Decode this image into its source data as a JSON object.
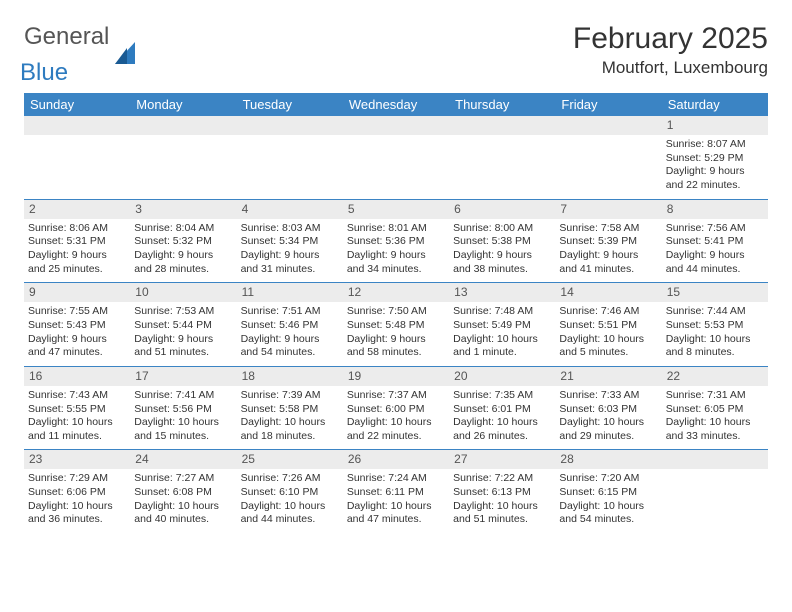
{
  "brand": {
    "word1": "General",
    "word2": "Blue"
  },
  "title": "February 2025",
  "location": "Moutfort, Luxembourg",
  "colors": {
    "header_bg": "#3b84c4",
    "header_text": "#ffffff",
    "grid_line": "#3b84c4",
    "daynum_bg": "#ececec",
    "body_text": "#333333",
    "brand_gray": "#555555",
    "brand_blue": "#2e7bbf"
  },
  "day_names": [
    "Sunday",
    "Monday",
    "Tuesday",
    "Wednesday",
    "Thursday",
    "Friday",
    "Saturday"
  ],
  "weeks": [
    [
      null,
      null,
      null,
      null,
      null,
      null,
      {
        "n": "1",
        "sunrise": "8:07 AM",
        "sunset": "5:29 PM",
        "dl1": "Daylight: 9 hours",
        "dl2": "and 22 minutes."
      }
    ],
    [
      {
        "n": "2",
        "sunrise": "8:06 AM",
        "sunset": "5:31 PM",
        "dl1": "Daylight: 9 hours",
        "dl2": "and 25 minutes."
      },
      {
        "n": "3",
        "sunrise": "8:04 AM",
        "sunset": "5:32 PM",
        "dl1": "Daylight: 9 hours",
        "dl2": "and 28 minutes."
      },
      {
        "n": "4",
        "sunrise": "8:03 AM",
        "sunset": "5:34 PM",
        "dl1": "Daylight: 9 hours",
        "dl2": "and 31 minutes."
      },
      {
        "n": "5",
        "sunrise": "8:01 AM",
        "sunset": "5:36 PM",
        "dl1": "Daylight: 9 hours",
        "dl2": "and 34 minutes."
      },
      {
        "n": "6",
        "sunrise": "8:00 AM",
        "sunset": "5:38 PM",
        "dl1": "Daylight: 9 hours",
        "dl2": "and 38 minutes."
      },
      {
        "n": "7",
        "sunrise": "7:58 AM",
        "sunset": "5:39 PM",
        "dl1": "Daylight: 9 hours",
        "dl2": "and 41 minutes."
      },
      {
        "n": "8",
        "sunrise": "7:56 AM",
        "sunset": "5:41 PM",
        "dl1": "Daylight: 9 hours",
        "dl2": "and 44 minutes."
      }
    ],
    [
      {
        "n": "9",
        "sunrise": "7:55 AM",
        "sunset": "5:43 PM",
        "dl1": "Daylight: 9 hours",
        "dl2": "and 47 minutes."
      },
      {
        "n": "10",
        "sunrise": "7:53 AM",
        "sunset": "5:44 PM",
        "dl1": "Daylight: 9 hours",
        "dl2": "and 51 minutes."
      },
      {
        "n": "11",
        "sunrise": "7:51 AM",
        "sunset": "5:46 PM",
        "dl1": "Daylight: 9 hours",
        "dl2": "and 54 minutes."
      },
      {
        "n": "12",
        "sunrise": "7:50 AM",
        "sunset": "5:48 PM",
        "dl1": "Daylight: 9 hours",
        "dl2": "and 58 minutes."
      },
      {
        "n": "13",
        "sunrise": "7:48 AM",
        "sunset": "5:49 PM",
        "dl1": "Daylight: 10 hours",
        "dl2": "and 1 minute."
      },
      {
        "n": "14",
        "sunrise": "7:46 AM",
        "sunset": "5:51 PM",
        "dl1": "Daylight: 10 hours",
        "dl2": "and 5 minutes."
      },
      {
        "n": "15",
        "sunrise": "7:44 AM",
        "sunset": "5:53 PM",
        "dl1": "Daylight: 10 hours",
        "dl2": "and 8 minutes."
      }
    ],
    [
      {
        "n": "16",
        "sunrise": "7:43 AM",
        "sunset": "5:55 PM",
        "dl1": "Daylight: 10 hours",
        "dl2": "and 11 minutes."
      },
      {
        "n": "17",
        "sunrise": "7:41 AM",
        "sunset": "5:56 PM",
        "dl1": "Daylight: 10 hours",
        "dl2": "and 15 minutes."
      },
      {
        "n": "18",
        "sunrise": "7:39 AM",
        "sunset": "5:58 PM",
        "dl1": "Daylight: 10 hours",
        "dl2": "and 18 minutes."
      },
      {
        "n": "19",
        "sunrise": "7:37 AM",
        "sunset": "6:00 PM",
        "dl1": "Daylight: 10 hours",
        "dl2": "and 22 minutes."
      },
      {
        "n": "20",
        "sunrise": "7:35 AM",
        "sunset": "6:01 PM",
        "dl1": "Daylight: 10 hours",
        "dl2": "and 26 minutes."
      },
      {
        "n": "21",
        "sunrise": "7:33 AM",
        "sunset": "6:03 PM",
        "dl1": "Daylight: 10 hours",
        "dl2": "and 29 minutes."
      },
      {
        "n": "22",
        "sunrise": "7:31 AM",
        "sunset": "6:05 PM",
        "dl1": "Daylight: 10 hours",
        "dl2": "and 33 minutes."
      }
    ],
    [
      {
        "n": "23",
        "sunrise": "7:29 AM",
        "sunset": "6:06 PM",
        "dl1": "Daylight: 10 hours",
        "dl2": "and 36 minutes."
      },
      {
        "n": "24",
        "sunrise": "7:27 AM",
        "sunset": "6:08 PM",
        "dl1": "Daylight: 10 hours",
        "dl2": "and 40 minutes."
      },
      {
        "n": "25",
        "sunrise": "7:26 AM",
        "sunset": "6:10 PM",
        "dl1": "Daylight: 10 hours",
        "dl2": "and 44 minutes."
      },
      {
        "n": "26",
        "sunrise": "7:24 AM",
        "sunset": "6:11 PM",
        "dl1": "Daylight: 10 hours",
        "dl2": "and 47 minutes."
      },
      {
        "n": "27",
        "sunrise": "7:22 AM",
        "sunset": "6:13 PM",
        "dl1": "Daylight: 10 hours",
        "dl2": "and 51 minutes."
      },
      {
        "n": "28",
        "sunrise": "7:20 AM",
        "sunset": "6:15 PM",
        "dl1": "Daylight: 10 hours",
        "dl2": "and 54 minutes."
      },
      null
    ]
  ],
  "labels": {
    "sunrise_prefix": "Sunrise: ",
    "sunset_prefix": "Sunset: "
  }
}
